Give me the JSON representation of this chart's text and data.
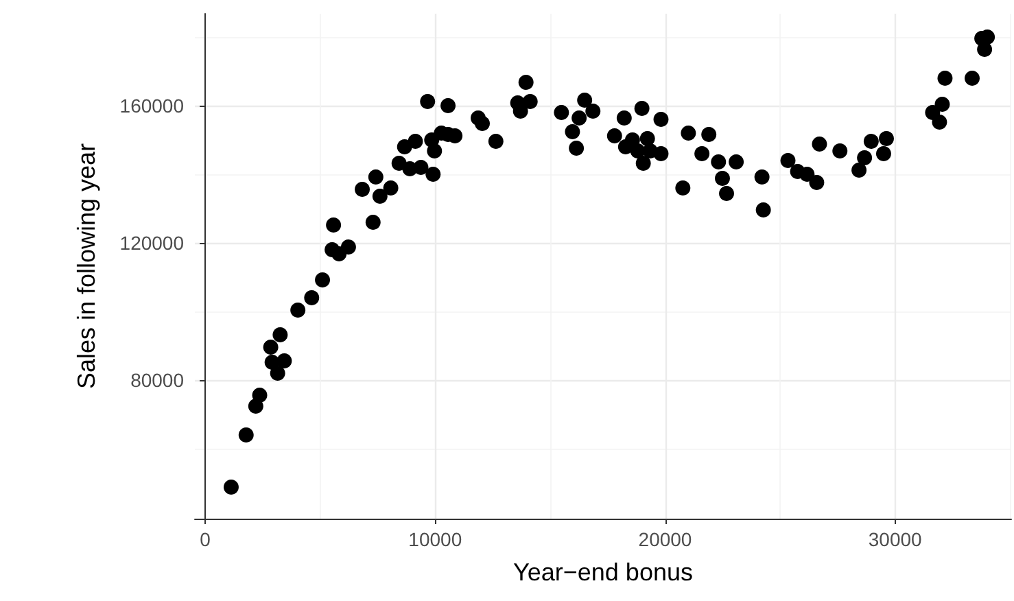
{
  "chart_data": {
    "type": "scatter",
    "xlabel": "Year−end bonus",
    "ylabel": "Sales in following year",
    "xlim": [
      -450,
      35050
    ],
    "ylim": [
      39600,
      186800
    ],
    "xticks": [
      0,
      10000,
      20000,
      30000
    ],
    "yticks": [
      80000,
      120000,
      160000
    ],
    "grid": true,
    "marker": "circle",
    "series": [
      {
        "color": "#000000",
        "x": [
          1130,
          1780,
          2200,
          2370,
          2850,
          3260,
          2910,
          3440,
          3150,
          4030,
          4630,
          5100,
          5520,
          5580,
          5820,
          6230,
          6830,
          7300,
          7420,
          7600,
          8070,
          8430,
          8670,
          9140,
          8900,
          9380,
          9910,
          9970,
          10270,
          10560,
          10860,
          9850,
          9670,
          10560,
          11870,
          12050,
          12640,
          13590,
          13950,
          14130,
          13710,
          15490,
          16500,
          16860,
          16260,
          15970,
          16140,
          18220,
          18990,
          19820,
          17800,
          18280,
          18580,
          19230,
          19050,
          18810,
          19350,
          19820,
          20770,
          21010,
          21900,
          21600,
          22320,
          23090,
          22490,
          22670,
          24210,
          24270,
          25340,
          25760,
          26170,
          26590,
          26710,
          27600,
          28430,
          28670,
          28960,
          29620,
          29500,
          31630,
          32050,
          31930,
          32170,
          33350,
          33890,
          33770,
          34010
        ],
        "values": [
          48800,
          64000,
          72400,
          75600,
          89600,
          93200,
          85200,
          85600,
          82000,
          100400,
          104000,
          109200,
          118000,
          125200,
          116800,
          118800,
          135600,
          126000,
          139200,
          133600,
          136000,
          143200,
          148000,
          149600,
          141600,
          142000,
          140000,
          146800,
          152000,
          151600,
          151200,
          150000,
          161200,
          160000,
          156400,
          154800,
          149600,
          160800,
          166800,
          161200,
          158400,
          158000,
          161600,
          158400,
          156400,
          152400,
          147600,
          156400,
          159200,
          156000,
          151200,
          148000,
          150000,
          150400,
          143200,
          146800,
          146800,
          146000,
          136000,
          152000,
          151600,
          146000,
          143600,
          143600,
          138800,
          134400,
          139200,
          129600,
          144000,
          140800,
          140000,
          137600,
          148800,
          146800,
          141200,
          144800,
          149600,
          150400,
          146000,
          158000,
          160400,
          155200,
          168000,
          168000,
          176400,
          179600,
          180000
        ]
      }
    ]
  }
}
